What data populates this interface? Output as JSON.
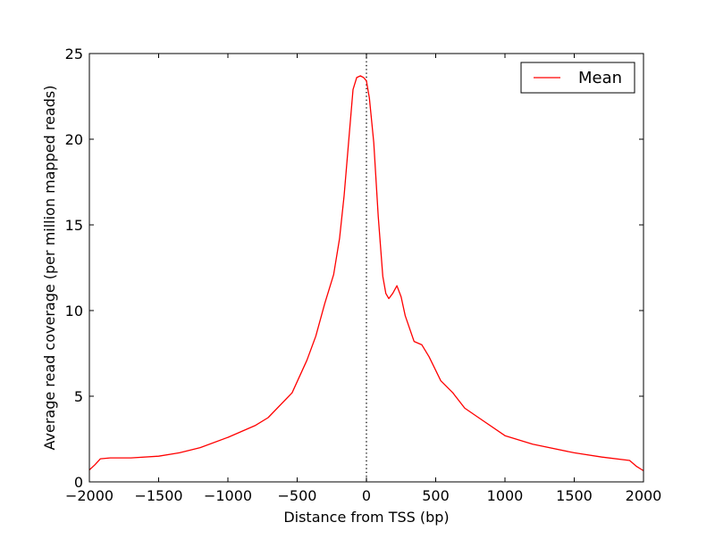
{
  "chart_data": {
    "type": "line",
    "title": "",
    "xlabel": "Distance from TSS (bp)",
    "ylabel": "Average read coverage (per million mapped reads)",
    "xlim": [
      -2000,
      2000
    ],
    "ylim": [
      0,
      25
    ],
    "xticks": [
      -2000,
      -1500,
      -1000,
      -500,
      0,
      500,
      1000,
      1500,
      2000
    ],
    "yticks": [
      0,
      5,
      10,
      15,
      20,
      25
    ],
    "grid": false,
    "legend": "top-right",
    "vline": {
      "x": 0,
      "style": "dotted",
      "color": "#000000"
    },
    "series": [
      {
        "name": "Mean",
        "color": "#ff0000",
        "x": [
          -2000,
          -1960,
          -1920,
          -1850,
          -1700,
          -1500,
          -1350,
          -1200,
          -1000,
          -800,
          -710,
          -537,
          -430,
          -366,
          -301,
          -237,
          -194,
          -161,
          -129,
          -97,
          -70,
          -43,
          -20,
          0,
          21,
          53,
          85,
          118,
          140,
          161,
          190,
          220,
          250,
          280,
          344,
          400,
          452,
          537,
          624,
          710,
          800,
          1000,
          1200,
          1500,
          1700,
          1900,
          1950,
          2000
        ],
        "y": [
          0.7,
          1.0,
          1.35,
          1.4,
          1.4,
          1.5,
          1.7,
          2.0,
          2.6,
          3.3,
          3.75,
          5.2,
          7.1,
          8.5,
          10.4,
          12.1,
          14.2,
          16.7,
          19.8,
          22.9,
          23.6,
          23.7,
          23.6,
          23.4,
          22.4,
          19.8,
          15.5,
          12.0,
          11.0,
          10.7,
          11.0,
          11.45,
          10.8,
          9.7,
          8.2,
          8.0,
          7.3,
          5.9,
          5.2,
          4.3,
          3.8,
          2.7,
          2.2,
          1.7,
          1.45,
          1.25,
          0.9,
          0.65
        ]
      }
    ]
  }
}
